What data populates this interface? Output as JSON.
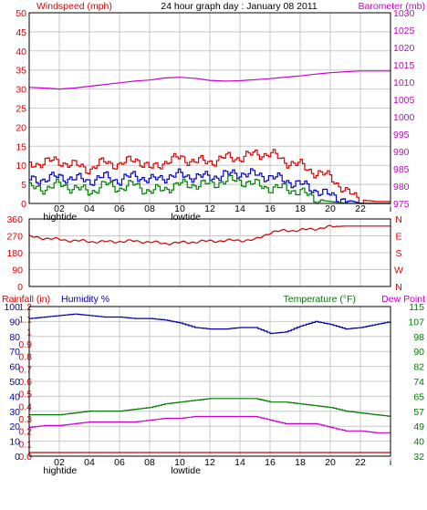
{
  "header": {
    "left_label": "Windspeed (mph)",
    "title": "24 hour graph day : January 08 2011",
    "right_label": "Barometer (mb)"
  },
  "bottom_header": {
    "rain_label": "Rainfall (in)",
    "humidity_label": "Humidity %",
    "temperature_label": "Temperature (°F)",
    "dewpoint_label": "Dew Point"
  },
  "hour_labels": [
    "02",
    "04",
    "06",
    "08",
    "10",
    "12",
    "14",
    "16",
    "18",
    "20",
    "22",
    "i"
  ],
  "tide_labels": {
    "high": "hightide",
    "low": "lowtide"
  },
  "colors": {
    "wind": "#e00000",
    "avg_wind": "#0000cc",
    "gust_low": "#008000",
    "barometer": "#cc00cc",
    "direction": "#cc0000",
    "humidity": "#0000aa",
    "temperature": "#007a00",
    "dewpoint": "#cc00cc",
    "rain": "#cc0000"
  },
  "chart_data": [
    {
      "type": "line",
      "title": "24 hour graph day : January 08 2011",
      "x": [
        0,
        1,
        2,
        3,
        4,
        5,
        6,
        7,
        8,
        9,
        10,
        11,
        12,
        13,
        14,
        15,
        16,
        17,
        18,
        19,
        20,
        21,
        22,
        23,
        24
      ],
      "x_ticks": [
        "02",
        "04",
        "06",
        "08",
        "10",
        "12",
        "14",
        "16",
        "18",
        "20",
        "22",
        "i"
      ],
      "ylabel": "Windspeed (mph)",
      "ylim": [
        0,
        50
      ],
      "y_ticks": [
        0,
        5,
        10,
        15,
        20,
        25,
        30,
        35,
        40,
        45,
        50
      ],
      "y2label": "Barometer (mb)",
      "y2lim": [
        975,
        1030
      ],
      "y2_ticks": [
        975,
        980,
        985,
        990,
        995,
        1000,
        1005,
        1010,
        1015,
        1020,
        1025,
        1030
      ],
      "grid": true,
      "series": [
        {
          "color": "#e00000",
          "axis": "left",
          "values": [
            10,
            11,
            11,
            10,
            9,
            11,
            10,
            12,
            9,
            11,
            12,
            11,
            11,
            12,
            12,
            13,
            13,
            11,
            10,
            8,
            7,
            3,
            1,
            0.5,
            0.5
          ]
        },
        {
          "color": "#0000cc",
          "axis": "left",
          "values": [
            6,
            6.5,
            7,
            6.5,
            6,
            7,
            6,
            7.5,
            6,
            7,
            7.5,
            7,
            7,
            7.5,
            8,
            7.5,
            7,
            6,
            5,
            3.5,
            2,
            1,
            0,
            0,
            0
          ]
        },
        {
          "color": "#008000",
          "axis": "left",
          "values": [
            4,
            4,
            5,
            4,
            3,
            5,
            4,
            5,
            3,
            4,
            5,
            5,
            5,
            6,
            6,
            5,
            4,
            4,
            3,
            1,
            0.5,
            0,
            0,
            0,
            0
          ]
        },
        {
          "color": "#cc00cc",
          "axis": "right",
          "values": [
            1008.5,
            1008.3,
            1008,
            1008.3,
            1008.8,
            1009.3,
            1009.8,
            1010.3,
            1010.6,
            1011.2,
            1011.4,
            1011.1,
            1010.5,
            1010.3,
            1010.4,
            1010.7,
            1011,
            1011.4,
            1011.8,
            1012.3,
            1012.7,
            1013,
            1013.2,
            1013.2,
            1013.2
          ]
        }
      ]
    },
    {
      "type": "scatter",
      "ylim": [
        0,
        360
      ],
      "y_ticks": [
        0,
        90,
        180,
        270,
        360
      ],
      "y2_ticks": [
        "N",
        "W",
        "S",
        "E",
        "N"
      ],
      "grid": true,
      "series": [
        {
          "color": "#cc0000",
          "x": [
            0,
            1,
            2,
            3,
            4,
            5,
            6,
            7,
            8,
            9,
            10,
            11,
            12,
            13,
            14,
            15,
            16,
            17,
            18,
            19,
            20,
            21,
            22,
            23,
            24
          ],
          "values": [
            265,
            258,
            250,
            244,
            240,
            238,
            240,
            242,
            237,
            230,
            233,
            238,
            242,
            244,
            246,
            248,
            288,
            298,
            300,
            308,
            318,
            322,
            322,
            322,
            322
          ]
        }
      ]
    },
    {
      "type": "line",
      "ylabel": "Rainfall (in)",
      "rain_ticks": [
        "0.0",
        "0.1",
        "0.2",
        "0.3",
        "0.4",
        "0.5",
        "0.6",
        "0.7",
        "0.8",
        "0.9",
        "1",
        "1.1",
        "1.2"
      ],
      "humidity_ticks": [
        0,
        10,
        20,
        30,
        40,
        50,
        60,
        70,
        80,
        90,
        100
      ],
      "temp_ticks": [
        32,
        40,
        49,
        57,
        65,
        74,
        82,
        90,
        98,
        107,
        115
      ],
      "ylim": [
        0,
        100
      ],
      "y2lim": [
        32,
        115
      ],
      "grid": true,
      "series": [
        {
          "color": "#0000aa",
          "axis": "humidity",
          "values": [
            92,
            93,
            94,
            95,
            94,
            93,
            93,
            92,
            92,
            91,
            89,
            86,
            85,
            85,
            86,
            86,
            82,
            83,
            87,
            90,
            88,
            85,
            86,
            88,
            90
          ]
        },
        {
          "color": "#007a00",
          "axis": "temperature",
          "values": [
            55,
            55,
            55,
            56,
            57,
            57,
            57,
            58,
            59,
            61,
            62,
            63,
            64,
            64,
            64,
            64,
            62,
            62,
            61,
            60,
            59,
            57,
            56,
            55,
            54
          ]
        },
        {
          "color": "#cc00cc",
          "axis": "temperature",
          "values": [
            48,
            49,
            49,
            50,
            51,
            51,
            51,
            51,
            52,
            53,
            53,
            54,
            54,
            54,
            54,
            54,
            52,
            50,
            50,
            50,
            48,
            46,
            46,
            45,
            45
          ]
        },
        {
          "color": "#cc0000",
          "axis": "rain",
          "values": [
            0,
            0,
            0,
            0,
            0,
            0,
            0,
            0,
            0,
            0,
            0,
            0,
            0,
            0,
            0,
            0,
            0,
            0,
            0,
            0,
            0,
            0,
            0,
            0,
            0
          ]
        }
      ]
    }
  ]
}
